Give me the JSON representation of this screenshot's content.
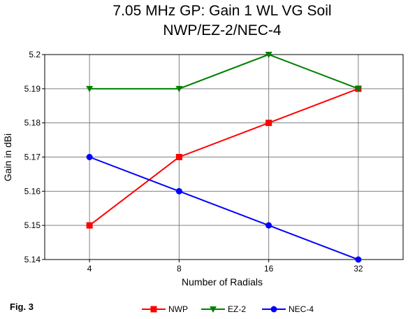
{
  "figure_label": "Fig. 3",
  "chart_data": {
    "type": "line",
    "title": "7.05 MHz GP:  Gain 1 WL VG Soil",
    "subtitle": "NWP/EZ-2/NEC-4",
    "xlabel": "Number of Radials",
    "ylabel": "Gain in dBi",
    "categories": [
      "4",
      "8",
      "16",
      "32"
    ],
    "ylim": [
      5.14,
      5.2
    ],
    "yticks": [
      "5.14",
      "5.15",
      "5.16",
      "5.17",
      "5.18",
      "5.19",
      "5.2"
    ],
    "grid": true,
    "legend_position": "bottom",
    "series": [
      {
        "name": "NWP",
        "color": "#ff0000",
        "marker": "square",
        "values": [
          5.15,
          5.17,
          5.18,
          5.19
        ]
      },
      {
        "name": "EZ-2",
        "color": "#008000",
        "marker": "triangle-down",
        "values": [
          5.19,
          5.19,
          5.2,
          5.19
        ]
      },
      {
        "name": "NEC-4",
        "color": "#0000ff",
        "marker": "circle",
        "values": [
          5.17,
          5.16,
          5.15,
          5.14
        ]
      }
    ]
  }
}
